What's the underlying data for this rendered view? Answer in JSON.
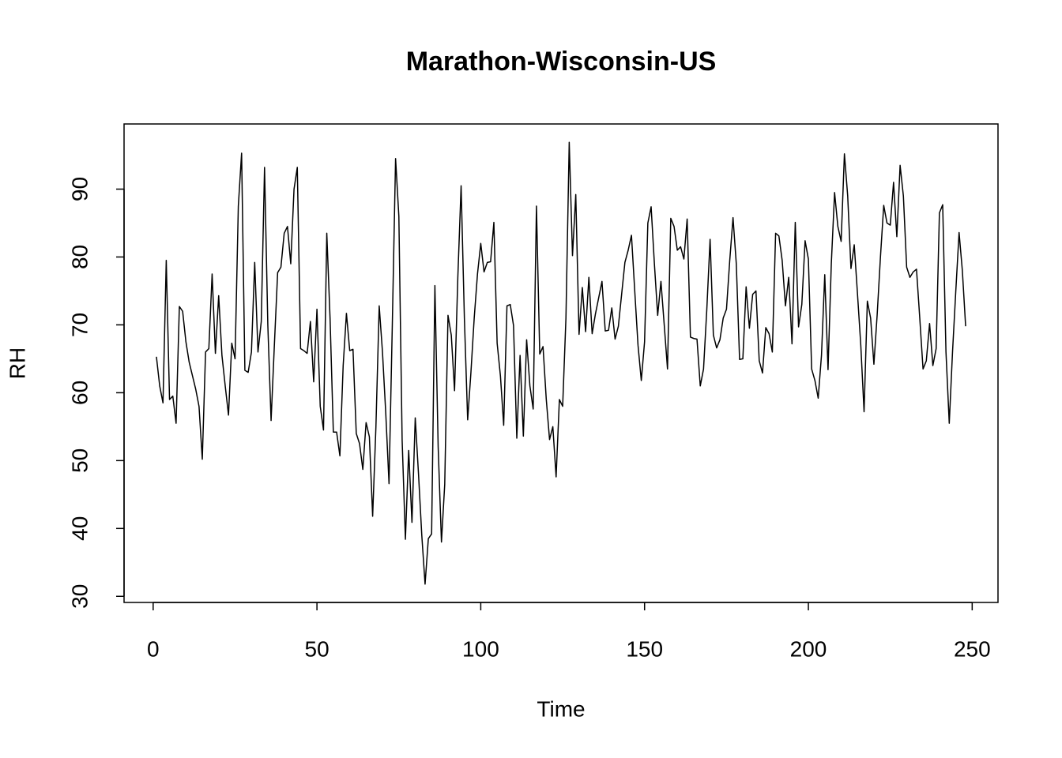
{
  "chart_data": {
    "type": "line",
    "title": "Marathon-Wisconsin-US",
    "x_label": "Time",
    "y_label": "RH",
    "color": "#000000",
    "x": [
      1,
      2,
      3,
      4,
      5,
      6,
      7,
      8,
      9,
      10,
      11,
      12,
      13,
      14,
      15,
      16,
      17,
      18,
      19,
      20,
      21,
      22,
      23,
      24,
      25,
      26,
      27,
      28,
      29,
      30,
      31,
      32,
      33,
      34,
      35,
      36,
      37,
      38,
      39,
      40,
      41,
      42,
      43,
      44,
      45,
      46,
      47,
      48,
      49,
      50,
      51,
      52,
      53,
      54,
      55,
      56,
      57,
      58,
      59,
      60,
      61,
      62,
      63,
      64,
      65,
      66,
      67,
      68,
      69,
      70,
      71,
      72,
      73,
      74,
      75,
      76,
      77,
      78,
      79,
      80,
      81,
      82,
      83,
      84,
      85,
      86,
      87,
      88,
      89,
      90,
      91,
      92,
      93,
      94,
      95,
      96,
      97,
      98,
      99,
      100,
      101,
      102,
      103,
      104,
      105,
      106,
      107,
      108,
      109,
      110,
      111,
      112,
      113,
      114,
      115,
      116,
      117,
      118,
      119,
      120,
      121,
      122,
      123,
      124,
      125,
      126,
      127,
      128,
      129,
      130,
      131,
      132,
      133,
      134,
      135,
      136,
      137,
      138,
      139,
      140,
      141,
      142,
      143,
      144,
      145,
      146,
      147,
      148,
      149,
      150,
      151,
      152,
      153,
      154,
      155,
      156,
      157,
      158,
      159,
      160,
      161,
      162,
      163,
      164,
      165,
      166,
      167,
      168,
      169,
      170,
      171,
      172,
      173,
      174,
      175,
      176,
      177,
      178,
      179,
      180,
      181,
      182,
      183,
      184,
      185,
      186,
      187,
      188,
      189,
      190,
      191,
      192,
      193,
      194,
      195,
      196,
      197,
      198,
      199,
      200,
      201,
      202,
      203,
      204,
      205,
      206,
      207,
      208,
      209,
      210,
      211,
      212,
      213,
      214,
      215,
      216,
      217,
      218,
      219,
      220,
      221,
      222,
      223,
      224,
      225,
      226,
      227,
      228,
      229,
      230,
      231,
      232,
      233,
      234,
      235,
      236,
      237,
      238,
      239,
      240,
      241,
      242,
      243,
      244,
      245,
      246,
      247,
      248
    ],
    "values": [
      65.3,
      61,
      58.5,
      79.5,
      59,
      59.5,
      55.5,
      72.7,
      72,
      67.5,
      64.5,
      62.5,
      60.5,
      58,
      50.2,
      66,
      66.5,
      77.5,
      65.8,
      74.3,
      65.5,
      61,
      56.7,
      67.3,
      65,
      87.5,
      95.3,
      63.3,
      63,
      66,
      79.2,
      66,
      70.5,
      93.2,
      70,
      55.9,
      67,
      77.7,
      78.5,
      83.5,
      84.5,
      79,
      90,
      93.2,
      66.5,
      66.2,
      65.8,
      70.5,
      61.6,
      72.3,
      58,
      54.5,
      83.5,
      71,
      54.2,
      54.2,
      50.7,
      64,
      71.7,
      66.2,
      66.4,
      54,
      52.5,
      48.7,
      55.6,
      53.5,
      41.8,
      55,
      72.8,
      66,
      57,
      46.6,
      70,
      94.5,
      86,
      53,
      38.4,
      51.5,
      40.9,
      56.3,
      48,
      39,
      31.8,
      38.5,
      39.2,
      75.8,
      52,
      38,
      46.5,
      71.4,
      68.5,
      60.3,
      77,
      90.5,
      71,
      56,
      63,
      71,
      77.5,
      82,
      77.8,
      79.2,
      79.3,
      85.1,
      67.3,
      62.5,
      55.2,
      72.8,
      73,
      69.9,
      53.3,
      65.5,
      53.6,
      67.8,
      61,
      57.6,
      87.5,
      65.7,
      66.8,
      59,
      53.1,
      55,
      47.6,
      59,
      58,
      71,
      96.9,
      80.2,
      89.2,
      68.6,
      75.5,
      69,
      77,
      68.7,
      71.6,
      74,
      76.4,
      69.1,
      69.2,
      72.5,
      67.9,
      69.8,
      74.5,
      79.2,
      81,
      83.2,
      75,
      67,
      61.8,
      67.5,
      85,
      87.4,
      79,
      71.4,
      76.4,
      70,
      63.5,
      85.7,
      84.5,
      81,
      81.5,
      79.7,
      85.6,
      68.2,
      68,
      67.9,
      61,
      63.5,
      72.3,
      82.6,
      68.5,
      66.6,
      67.8,
      71,
      72.3,
      79.5,
      85.8,
      79,
      64.9,
      65,
      75.6,
      69.5,
      74.5,
      75,
      64.7,
      62.9,
      69.6,
      68.7,
      66,
      83.5,
      83.1,
      79.5,
      72.8,
      77,
      67.2,
      85.1,
      69.7,
      73,
      82.4,
      79.7,
      63.5,
      61.8,
      59.2,
      65.5,
      77.4,
      63.4,
      79,
      89.5,
      84.5,
      82.3,
      95.2,
      89,
      78.3,
      81.8,
      74.5,
      67,
      57.2,
      73.5,
      71,
      64.2,
      71.5,
      80,
      87.6,
      85,
      84.7,
      91,
      83,
      93.5,
      89,
      78.5,
      77,
      77.8,
      78.2,
      71,
      63.5,
      64.7,
      70.2,
      64,
      66.5,
      86.5,
      87.7,
      66,
      55.5,
      66,
      75,
      83.6,
      78,
      69.8
    ],
    "xlim": [
      -8.88,
      257.88
    ],
    "ylim": [
      29.1,
      99.6
    ],
    "xticks": [
      0,
      50,
      100,
      150,
      200,
      250
    ],
    "yticks": [
      30,
      40,
      50,
      60,
      70,
      80,
      90
    ]
  }
}
